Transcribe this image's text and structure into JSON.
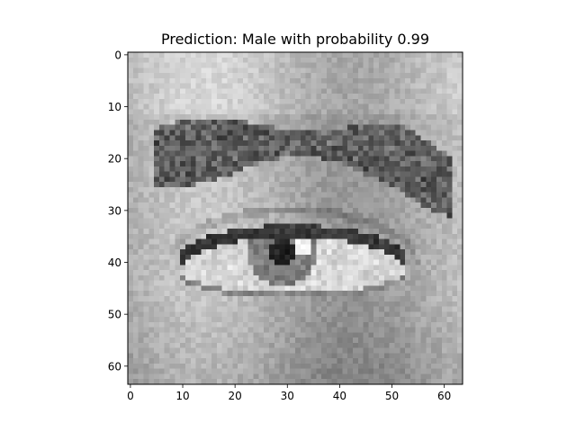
{
  "chart_data": {
    "type": "heatmap",
    "title": "Prediction: Male with probability 0.99",
    "xlabel": "",
    "ylabel": "",
    "xlim": [
      -0.5,
      63.5
    ],
    "ylim": [
      63.5,
      -0.5
    ],
    "xticks": [
      0,
      10,
      20,
      30,
      40,
      50,
      60
    ],
    "yticks": [
      0,
      10,
      20,
      30,
      40,
      50,
      60
    ],
    "image_shape": [
      64,
      64
    ],
    "colormap": "gray",
    "grid": false,
    "image_subject": "grayscale close-up of a human eye with eyebrow"
  }
}
